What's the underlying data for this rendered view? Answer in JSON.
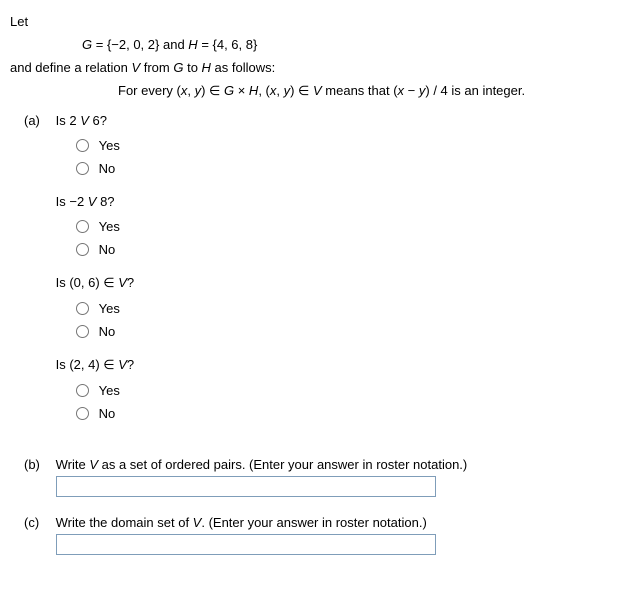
{
  "intro": {
    "let": "Let",
    "sets": "G = {−2, 0, 2} and H = {4, 6, 8}",
    "define": "and define a relation V from G to H as follows:",
    "rule_prefix": "For every (x, y) ∈ G × H, (x, y) ∈ V means that (x − y) / 4 is an integer."
  },
  "parts": {
    "a": {
      "label": "(a)",
      "q1": {
        "text": "Is 2 V 6?"
      },
      "q2": {
        "text": "Is −2 V 8?"
      },
      "q3": {
        "text": "Is (0, 6) ∈ V?"
      },
      "q4": {
        "text": "Is (2, 4) ∈ V?"
      }
    },
    "b": {
      "label": "(b)",
      "prompt": "Write V as a set of ordered pairs. (Enter your answer in roster notation.)"
    },
    "c": {
      "label": "(c)",
      "prompt": "Write the domain set of V. (Enter your answer in roster notation.)"
    }
  },
  "options": {
    "yes": "Yes",
    "no": "No"
  }
}
